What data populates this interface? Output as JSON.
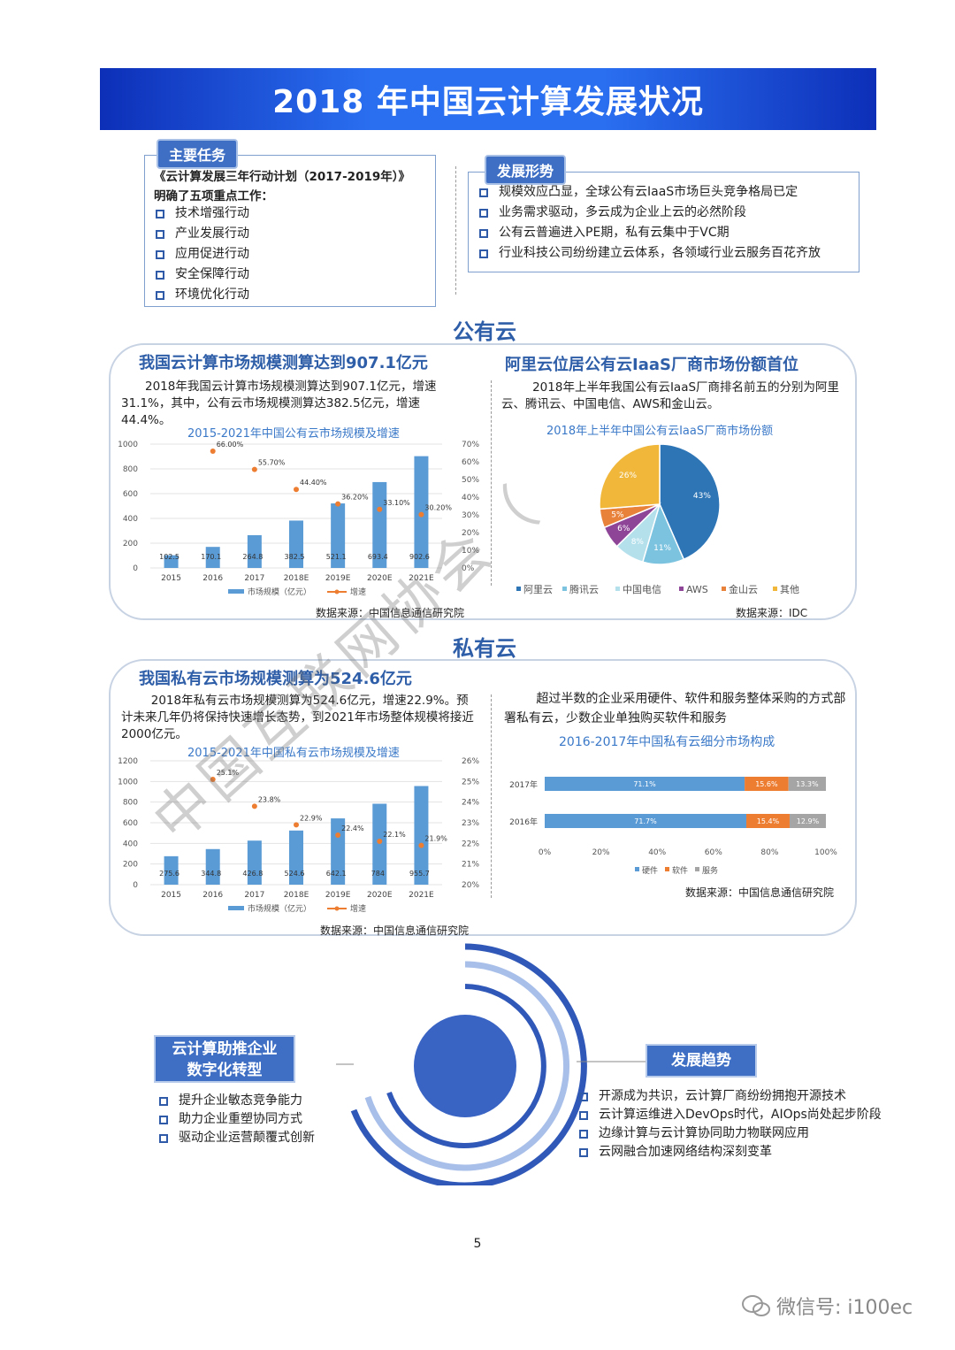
{
  "title": "2018 年中国云计算发展状况",
  "main_tasks": {
    "tag": "主要任务",
    "intro1": "《云计算发展三年行动计划（2017-2019年）》",
    "intro2": "明确了五项重点工作：",
    "items": [
      "技术增强行动",
      "产业发展行动",
      "应用促进行动",
      "安全保障行动",
      "环境优化行动"
    ]
  },
  "situation": {
    "tag": "发展形势",
    "items": [
      "规模效应凸显，全球公有云IaaS市场巨头竞争格局已定",
      "业务需求驱动，多云成为企业上云的必然阶段",
      "公有云普遍进入PE期，私有云集中于VC期",
      "行业科技公司纷纷建立云体系，各领域行业云服务百花齐放"
    ]
  },
  "public_cloud": {
    "section_title": "公有云",
    "left": {
      "heading": "我国云计算市场规模测算达到907.1亿元",
      "paragraph": "2018年我国云计算市场规模测算达到907.1亿元，增速31.1%，其中，公有云市场规模测算达382.5亿元，增速44.4%。",
      "chart_title": "2015-2021年中国公有云市场规模及增速",
      "source": "数据来源：中国信息通信研究院"
    },
    "right": {
      "heading": "阿里云位居公有云IaaS厂商市场份额首位",
      "paragraph": "2018年上半年我国公有云IaaS厂商排名前五的分别为阿里云、腾讯云、中国电信、AWS和金山云。",
      "chart_title": "2018年上半年中国公有云IaaS厂商市场份额",
      "source": "数据来源：IDC"
    }
  },
  "private_cloud": {
    "section_title": "私有云",
    "left": {
      "heading": "我国私有云市场规模测算为524.6亿元",
      "paragraph": "2018年私有云市场规模测算为524.6亿元，增速22.9%。预计未来几年仍将保持快速增长态势，到2021年市场整体规模将接近2000亿元。",
      "chart_title": "2015-2021年中国私有云市场规模及增速",
      "source": "数据来源：中国信息通信研究院"
    },
    "right": {
      "paragraph": "超过半数的企业采用硬件、软件和服务整体采购的方式部署私有云，少数企业单独购买软件和服务",
      "chart_title": "2016-2017年中国私有云细分市场构成",
      "source": "数据来源：中国信息通信研究院"
    }
  },
  "bottom": {
    "digital_tag_line1": "云计算助推企业",
    "digital_tag_line2": "数字化转型",
    "digital_items": [
      "提升企业敏态竞争能力",
      "助力企业重塑协同方式",
      "驱动企业运营颠覆式创新"
    ],
    "trend_tag": "发展趋势",
    "trend_items": [
      "开源成为共识，云计算厂商纷纷拥抱开源技术",
      "云计算运维进入DevOps时代，AIOps尚处起步阶段",
      "边缘计算与云计算协同助力物联网应用",
      "云网融合加速网络结构深刻变革"
    ]
  },
  "watermark": "中国互联网协会（",
  "page_number": "5",
  "wechat": "微信号: i100ec",
  "colors": {
    "bar": "#5b9bd5",
    "line": "#ed7d31",
    "accent": "#2f5ea8"
  },
  "chart_data": [
    {
      "type": "bar",
      "categories": [
        "2015",
        "2016",
        "2017",
        "2018E",
        "2019E",
        "2020E",
        "2021E"
      ],
      "series": [
        {
          "name": "市场规模（亿元）",
          "values": [
            102.5,
            170.1,
            264.8,
            382.5,
            521.1,
            693.4,
            902.6
          ],
          "labels": [
            "102.5",
            "170.1",
            "264.8",
            "382.5",
            "521.1",
            "693.4",
            "902.6"
          ]
        },
        {
          "name": "增速",
          "values": [
            null,
            66.0,
            55.7,
            44.4,
            36.2,
            33.1,
            30.2
          ],
          "labels": [
            "",
            "66.00%",
            "55.70%",
            "44.40%",
            "36.20%",
            "33.10%",
            "30.20%"
          ]
        }
      ],
      "yticks_left": [
        "0",
        "200",
        "400",
        "600",
        "800",
        "1000"
      ],
      "yticks_right": [
        "0%",
        "10%",
        "20%",
        "30%",
        "40%",
        "50%",
        "60%",
        "70%"
      ],
      "ylim_left": [
        0,
        1000
      ],
      "ylim_right": [
        0,
        70
      ]
    },
    {
      "type": "pie",
      "labels": [
        "阿里云",
        "腾讯云",
        "中国电信",
        "AWS",
        "金山云",
        "其他"
      ],
      "values": [
        43,
        11,
        8,
        6,
        5,
        26
      ],
      "value_labels": [
        "43%",
        "11%",
        "8%",
        "6%",
        "5%",
        "26%"
      ],
      "colors": [
        "#2e75b6",
        "#7cc3e0",
        "#b4e0ec",
        "#8e4598",
        "#e8823b",
        "#f0b73a"
      ]
    },
    {
      "type": "bar",
      "categories": [
        "2015",
        "2016",
        "2017",
        "2018E",
        "2019E",
        "2020E",
        "2021E"
      ],
      "series": [
        {
          "name": "市场规模（亿元）",
          "values": [
            275.6,
            344.8,
            426.8,
            524.6,
            642.1,
            784,
            955.7
          ],
          "labels": [
            "275.6",
            "344.8",
            "426.8",
            "524.6",
            "642.1",
            "784",
            "955.7"
          ]
        },
        {
          "name": "增速",
          "values": [
            null,
            25.1,
            23.8,
            22.9,
            22.4,
            22.1,
            21.9
          ],
          "labels": [
            "",
            "25.1%",
            "23.8%",
            "22.9%",
            "22.4%",
            "22.1%",
            "21.9%"
          ]
        }
      ],
      "yticks_left": [
        "0",
        "200",
        "400",
        "600",
        "800",
        "1000",
        "1200"
      ],
      "yticks_right": [
        "20%",
        "21%",
        "22%",
        "23%",
        "24%",
        "25%",
        "26%"
      ],
      "ylim_left": [
        0,
        1200
      ],
      "ylim_right": [
        20,
        26
      ]
    },
    {
      "type": "bar",
      "stacked": true,
      "orientation": "horizontal",
      "categories": [
        "2017年",
        "2016年"
      ],
      "series": [
        {
          "name": "硬件",
          "values": [
            71.1,
            71.7
          ],
          "labels": [
            "71.1%",
            "71.7%"
          ],
          "color": "#5b9bd5"
        },
        {
          "name": "软件",
          "values": [
            15.6,
            15.4
          ],
          "labels": [
            "15.6%",
            "15.4%"
          ],
          "color": "#ed7d31"
        },
        {
          "name": "服务",
          "values": [
            13.3,
            12.9
          ],
          "labels": [
            "13.3%",
            "12.9%"
          ],
          "color": "#a5a5a5"
        }
      ],
      "xticks": [
        "0%",
        "20%",
        "40%",
        "60%",
        "80%",
        "100%"
      ],
      "xlim": [
        0,
        100
      ]
    }
  ]
}
